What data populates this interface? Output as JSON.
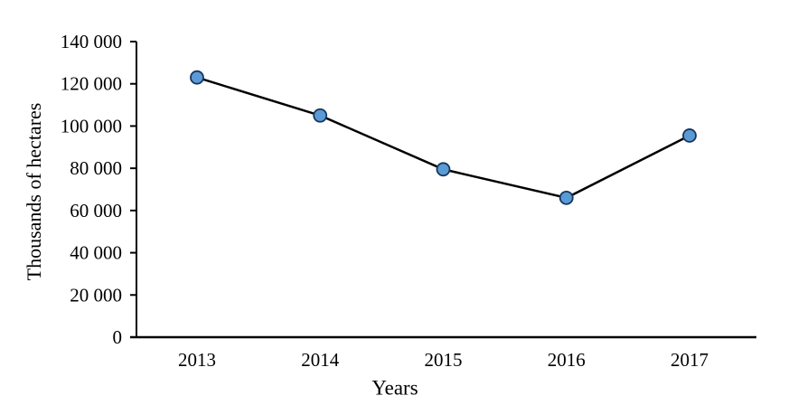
{
  "chart_data": {
    "type": "line",
    "categories": [
      "2013",
      "2014",
      "2015",
      "2016",
      "2017"
    ],
    "series": [
      {
        "name": "Thousands of hectares",
        "values": [
          123000,
          105000,
          79500,
          66000,
          95500
        ]
      }
    ],
    "title": "",
    "xlabel": "Years",
    "ylabel": "Thousands of hectares",
    "ylim": [
      0,
      140000
    ],
    "ytick_values": [
      0,
      20000,
      40000,
      60000,
      80000,
      100000,
      120000,
      140000
    ],
    "ytick_labels": [
      "0",
      "20 000",
      "40 000",
      "60 000",
      "80 000",
      "100 000",
      "120 000",
      "140 000"
    ],
    "grid": false,
    "legend_position": "none",
    "colors": {
      "line": "#000000",
      "marker_fill": "#5b9bd5",
      "marker_stroke": "#17375e",
      "axis": "#000000",
      "text": "#000000"
    }
  }
}
